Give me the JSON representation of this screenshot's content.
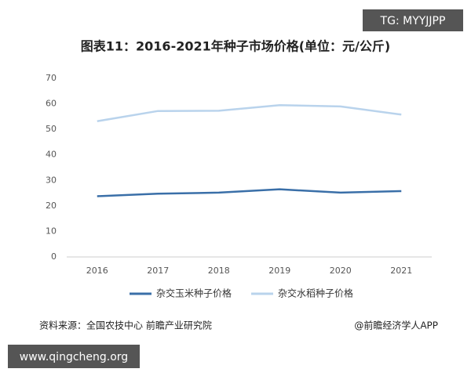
{
  "chart_data": {
    "type": "line",
    "title": "图表11：2016-2021年种子市场价格(单位：元/公斤)",
    "categories": [
      "2016",
      "2017",
      "2018",
      "2019",
      "2020",
      "2021"
    ],
    "series": [
      {
        "name": "杂交玉米种子价格",
        "color": "#3a6fa8",
        "values": [
          23.8,
          24.8,
          25.2,
          26.5,
          25.2,
          25.8
        ]
      },
      {
        "name": "杂交水稻种子价格",
        "color": "#b9d3ec",
        "values": [
          53.2,
          57.2,
          57.3,
          59.5,
          59.0,
          55.8
        ]
      }
    ],
    "ylim": [
      0,
      70
    ],
    "yticks": [
      0,
      10,
      20,
      30,
      40,
      50,
      60,
      70
    ],
    "grid": false,
    "legend": "bottom",
    "source": "资料来源：全国农技中心 前瞻产业研究院",
    "credit": "@前瞻经济学人APP",
    "watermark_top": "TG: MYYJJPP",
    "watermark_bottom": "www.qingcheng.org"
  }
}
